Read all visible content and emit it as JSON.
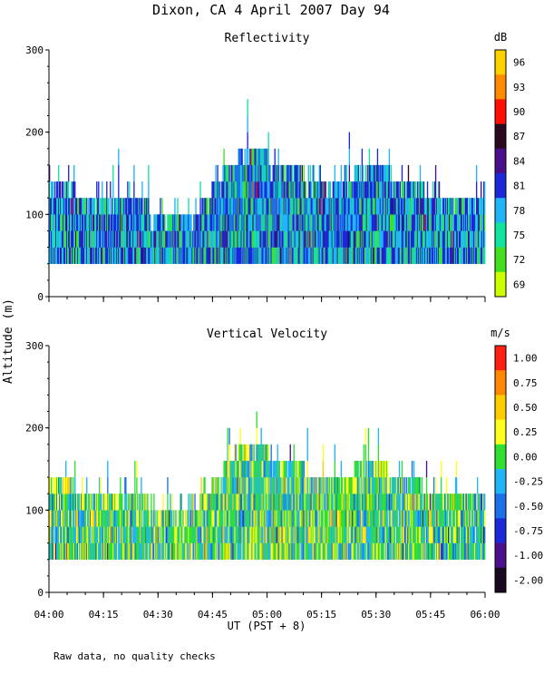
{
  "title": "Dixon, CA   4 April 2007   Day  94",
  "ylabel": "Altitude (m)",
  "xlabel": "UT  (PST + 8)",
  "footer_note": "Raw data, no quality checks",
  "chart_data": [
    {
      "type": "heatmap",
      "title": "Reflectivity",
      "xlabel": "UT  (PST + 8)",
      "ylabel": "Altitude (m)",
      "x_ticks": [
        "04:00",
        "04:15",
        "04:30",
        "04:45",
        "05:00",
        "05:15",
        "05:30",
        "05:45",
        "06:00"
      ],
      "xlim": [
        0,
        120
      ],
      "ylim": [
        0,
        300
      ],
      "y_ticks": [
        0,
        100,
        200,
        300
      ],
      "colorbar": {
        "unit": "dB",
        "labels": [
          "96",
          "93",
          "90",
          "87",
          "84",
          "81",
          "78",
          "75",
          "72",
          "69"
        ],
        "colors": [
          "#ffd000",
          "#ff8c00",
          "#ff1000",
          "#2a0a20",
          "#4b0f8c",
          "#1c28d8",
          "#20b4f8",
          "#10e4a0",
          "#44e020",
          "#ccff00"
        ]
      },
      "echo_bottom_m": 40,
      "echo_top_profile": {
        "minutes": [
          0,
          7,
          15,
          22,
          27,
          33,
          40,
          43,
          48,
          52,
          56,
          62,
          70,
          75,
          80,
          84,
          88,
          93,
          100,
          105,
          110,
          116,
          120
        ],
        "top_m": [
          140,
          130,
          120,
          120,
          110,
          100,
          100,
          120,
          150,
          170,
          180,
          165,
          150,
          140,
          140,
          150,
          150,
          150,
          140,
          120,
          120,
          120,
          120
        ]
      },
      "dominant_levels": [
        "81",
        "78",
        "75",
        "72",
        "84"
      ]
    },
    {
      "type": "heatmap",
      "title": "Vertical Velocity",
      "xlabel": "UT  (PST + 8)",
      "ylabel": "Altitude (m)",
      "x_ticks": [
        "04:00",
        "04:15",
        "04:30",
        "04:45",
        "05:00",
        "05:15",
        "05:30",
        "05:45",
        "06:00"
      ],
      "xlim": [
        0,
        120
      ],
      "ylim": [
        0,
        300
      ],
      "y_ticks": [
        0,
        100,
        200,
        300
      ],
      "colorbar": {
        "unit": "m/s",
        "labels": [
          "1.00",
          "0.75",
          "0.50",
          "0.25",
          "0.00",
          "-0.25",
          "-0.50",
          "-0.75",
          "-1.00",
          "-2.00"
        ],
        "colors": [
          "#ff2010",
          "#ff8800",
          "#ffcc00",
          "#ffff20",
          "#30e030",
          "#20b4f8",
          "#1c70e8",
          "#1c28d8",
          "#4b0f8c",
          "#1a0820"
        ]
      },
      "echo_bottom_m": 40,
      "echo_top_profile": {
        "minutes": [
          0,
          7,
          15,
          22,
          27,
          33,
          40,
          43,
          48,
          52,
          56,
          62,
          70,
          75,
          80,
          84,
          88,
          93,
          100,
          105,
          110,
          116,
          120
        ],
        "top_m": [
          140,
          130,
          120,
          120,
          110,
          100,
          100,
          120,
          150,
          170,
          180,
          165,
          150,
          140,
          140,
          150,
          150,
          150,
          140,
          120,
          120,
          120,
          120
        ]
      },
      "dominant_levels": [
        "0.00",
        "-0.25",
        "0.25",
        "-0.50",
        "0.50"
      ]
    }
  ]
}
